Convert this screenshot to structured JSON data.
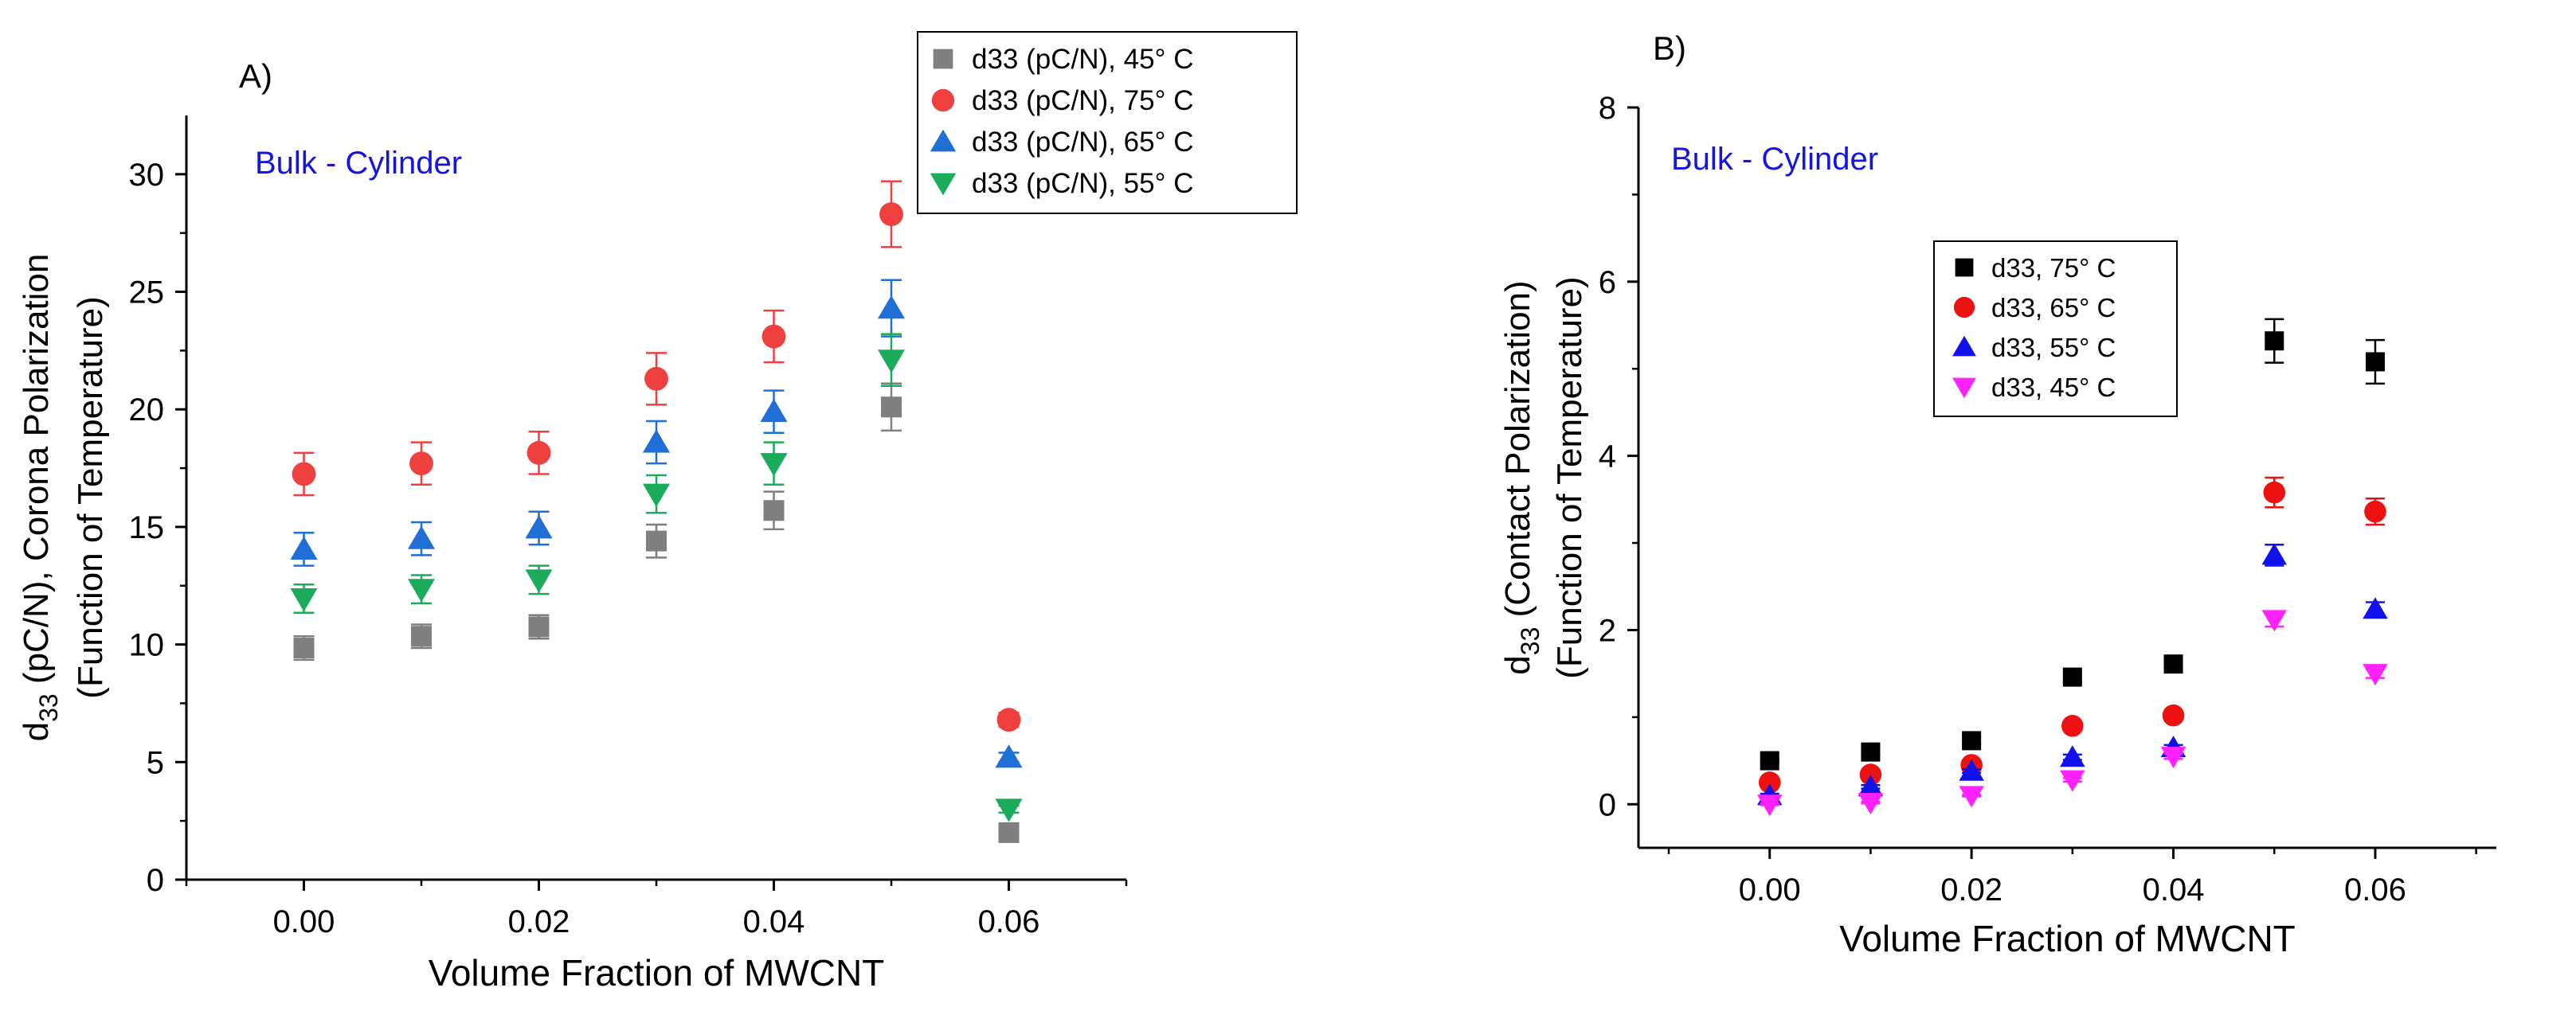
{
  "chart_data": [
    {
      "type": "scatter",
      "panel_label": "A)",
      "annotation": "Bulk - Cylinder",
      "xlabel": "Volume Fraction of MWCNT",
      "ylabel_parts": [
        "d",
        "33",
        " (pC/N), Corona Polarization"
      ],
      "ylabel_line2": "(Function of Temperature)",
      "xlim": [
        -0.01,
        0.07
      ],
      "ylim": [
        0,
        32.5
      ],
      "xticks": [
        0.0,
        0.02,
        0.04,
        0.06
      ],
      "xtick_labels": [
        "0.00",
        "0.02",
        "0.04",
        "0.06"
      ],
      "yticks": [
        0,
        5,
        10,
        15,
        20,
        25,
        30
      ],
      "ytick_labels": [
        "0",
        "5",
        "10",
        "15",
        "20",
        "25",
        "30"
      ],
      "legend_position": "top-right",
      "x": [
        0.0,
        0.01,
        0.02,
        0.03,
        0.04,
        0.05,
        0.06
      ],
      "series": [
        {
          "name": "d33 (pC/N), 45° C",
          "marker": "square",
          "color": "#7f7f7f",
          "values": [
            9.85,
            10.35,
            10.75,
            14.4,
            15.7,
            20.1,
            2.0
          ],
          "errors": [
            0.5,
            0.5,
            0.5,
            0.7,
            0.8,
            1.0,
            0.1
          ]
        },
        {
          "name": "d33 (pC/N), 75° C",
          "marker": "circle",
          "color": "#ef4040",
          "values": [
            17.25,
            17.7,
            18.15,
            21.3,
            23.1,
            28.3,
            6.8
          ],
          "errors": [
            0.9,
            0.9,
            0.9,
            1.1,
            1.1,
            1.4,
            0.3
          ]
        },
        {
          "name": "d33 (pC/N), 65° C",
          "marker": "triangle-up",
          "color": "#1f6fd6",
          "values": [
            14.05,
            14.5,
            14.95,
            18.6,
            19.9,
            24.3,
            5.2
          ],
          "errors": [
            0.7,
            0.7,
            0.7,
            0.9,
            0.9,
            1.2,
            0.2
          ]
        },
        {
          "name": "d33 (pC/N), 55° C",
          "marker": "triangle-down",
          "color": "#1aab5b",
          "values": [
            11.95,
            12.35,
            12.75,
            16.4,
            17.7,
            22.1,
            3.0
          ],
          "errors": [
            0.6,
            0.6,
            0.6,
            0.8,
            0.9,
            1.1,
            0.15
          ]
        }
      ]
    },
    {
      "type": "scatter",
      "panel_label": "B)",
      "annotation": "Bulk - Cylinder",
      "xlabel": "Volume Fraction of MWCNT",
      "ylabel_parts": [
        "d",
        "33",
        " (Contact Polarization)"
      ],
      "ylabel_line2": "(Function of Temperature)",
      "xlim": [
        -0.013,
        0.072
      ],
      "ylim": [
        -0.5,
        8
      ],
      "xticks": [
        0.0,
        0.02,
        0.04,
        0.06
      ],
      "xtick_labels": [
        "0.00",
        "0.02",
        "0.04",
        "0.06"
      ],
      "yticks": [
        0,
        2,
        4,
        6,
        8
      ],
      "ytick_labels": [
        "0",
        "2",
        "4",
        "6",
        "8"
      ],
      "legend_position": "center",
      "x": [
        0.0,
        0.01,
        0.02,
        0.03,
        0.04,
        0.05,
        0.06
      ],
      "series": [
        {
          "name": "d33, 75° C",
          "marker": "square",
          "color": "#000000",
          "values": [
            0.5,
            0.6,
            0.73,
            1.46,
            1.61,
            5.32,
            5.08
          ],
          "errors": [
            0.03,
            0.03,
            0.04,
            0.05,
            0.05,
            0.25,
            0.25
          ]
        },
        {
          "name": "d33, 65° C",
          "marker": "circle",
          "color": "#ee1111",
          "values": [
            0.25,
            0.34,
            0.45,
            0.9,
            1.02,
            3.58,
            3.36
          ],
          "errors": [
            0.02,
            0.02,
            0.03,
            0.04,
            0.04,
            0.17,
            0.15
          ]
        },
        {
          "name": "d33, 55° C",
          "marker": "triangle-up",
          "color": "#1111ee",
          "values": [
            0.1,
            0.2,
            0.38,
            0.54,
            0.65,
            2.86,
            2.24
          ],
          "errors": [
            0.02,
            0.02,
            0.02,
            0.03,
            0.03,
            0.12,
            0.08
          ]
        },
        {
          "name": "d33, 45° C",
          "marker": "triangle-down",
          "color": "#ff22ff",
          "values": [
            0.0,
            0.02,
            0.1,
            0.28,
            0.55,
            2.12,
            1.5
          ],
          "errors": [
            0.01,
            0.01,
            0.01,
            0.02,
            0.03,
            0.08,
            0.05
          ]
        }
      ]
    }
  ]
}
